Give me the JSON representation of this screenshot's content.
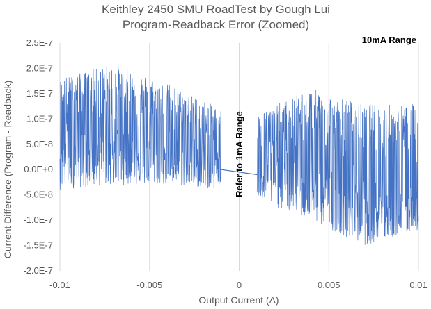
{
  "chart_data": {
    "type": "line",
    "title": "Keithley 2450 SMU RoadTest by Gough Lui",
    "subtitle": "Program-Readback Error (Zoomed)",
    "xlabel": "Output Current (A)",
    "ylabel": "Current Difference (Program - Readback)",
    "xlim": [
      -0.01,
      0.01
    ],
    "ylim": [
      -2e-07,
      2.5e-07
    ],
    "x_ticks": [
      -0.01,
      -0.005,
      0,
      0.005,
      0.01
    ],
    "x_tick_labels": [
      "-0.01",
      "-0.005",
      "0",
      "0.005",
      "0.01"
    ],
    "y_ticks": [
      2.5e-07,
      2e-07,
      1.5e-07,
      1e-07,
      5e-08,
      0,
      -5e-08,
      -1e-07,
      -1.5e-07,
      -2e-07
    ],
    "y_tick_labels": [
      "2.5E-7",
      "2.0E-7",
      "1.5E-7",
      "1.0E-7",
      "5.0E-8",
      "0.0E+0",
      "-5.0E-8",
      "-1.0E-7",
      "-1.5E-7",
      "-2.0E-7"
    ],
    "grid": "vertical",
    "legend": "none",
    "series_color": "#4472C4",
    "series": [
      {
        "segments": [
          {
            "x_range": [
              -0.01,
              -0.001
            ],
            "trend": [
              [
                -0.01,
                8e-08
              ],
              [
                -0.007,
                8.5e-08
              ],
              [
                -0.004,
                6e-08
              ],
              [
                -0.001,
                3e-08
              ]
            ],
            "envelope_upper": [
              [
                -0.01,
                1.8e-07
              ],
              [
                -0.007,
                2.1e-07
              ],
              [
                -0.004,
                1.7e-07
              ],
              [
                -0.001,
                1.2e-07
              ]
            ],
            "envelope_lower": [
              [
                -0.01,
                -4e-08
              ],
              [
                -0.007,
                -3e-08
              ],
              [
                -0.004,
                -3e-08
              ],
              [
                -0.001,
                -4e-08
              ]
            ]
          },
          {
            "x_range": [
              -0.001,
              0.001
            ],
            "line": [
              [
                -0.001,
                0.0
              ],
              [
                0.001,
                -1e-08
              ]
            ]
          },
          {
            "x_range": [
              0.001,
              0.01
            ],
            "trend": [
              [
                0.001,
                3e-08
              ],
              [
                0.004,
                3e-08
              ],
              [
                0.007,
                -2e-08
              ],
              [
                0.01,
                -3e-08
              ]
            ],
            "envelope_upper": [
              [
                0.001,
                1.1e-07
              ],
              [
                0.004,
                1.6e-07
              ],
              [
                0.007,
                1.3e-07
              ],
              [
                0.01,
                1.3e-07
              ]
            ],
            "envelope_lower": [
              [
                0.001,
                -6e-08
              ],
              [
                0.004,
                -1e-07
              ],
              [
                0.007,
                -1.5e-07
              ],
              [
                0.01,
                -1.2e-07
              ]
            ]
          }
        ]
      }
    ],
    "annotations": [
      "10mA Range",
      "Refer to 1mA Range"
    ]
  }
}
